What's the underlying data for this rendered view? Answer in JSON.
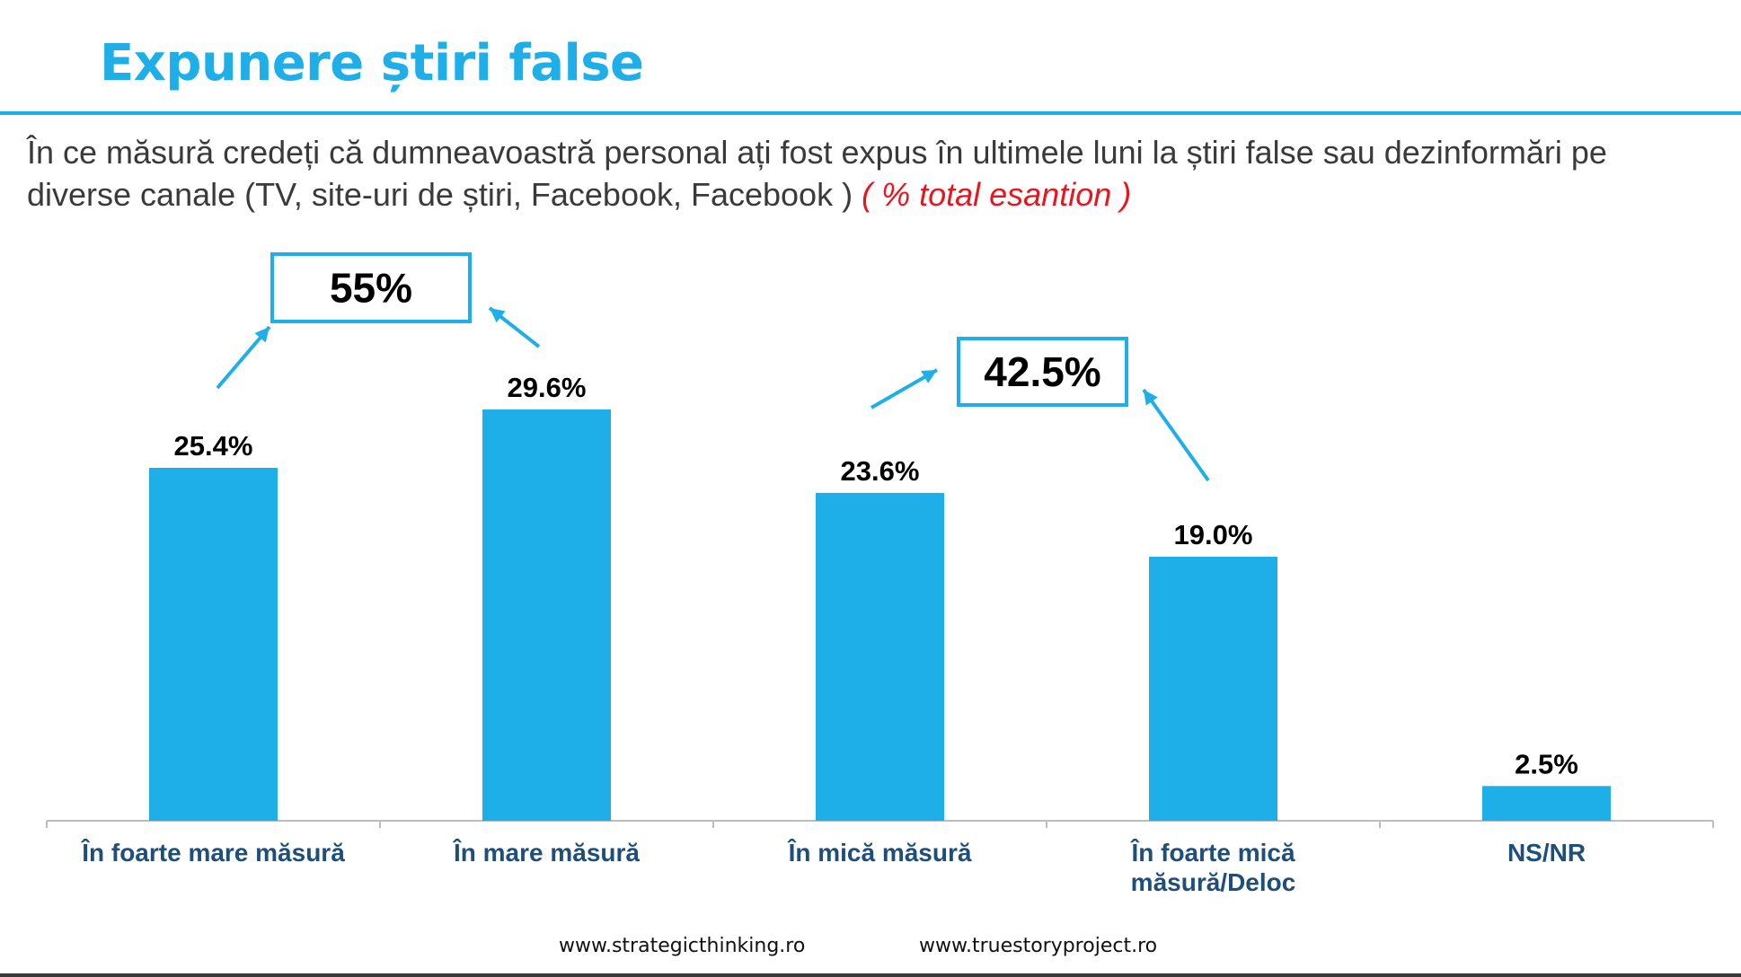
{
  "title": "Expunere știri false",
  "question": {
    "text": "În ce măsură credeți că dumneavoastră personal ați fost expus în ultimele luni la știri false sau dezinformări pe diverse canale (TV, site-uri de știri, Facebook, Facebook )",
    "note": "( % total esantion )"
  },
  "chart_data": {
    "type": "bar",
    "categories": [
      [
        "În foarte mare măsură"
      ],
      [
        "În mare măsură"
      ],
      [
        "În mică măsură"
      ],
      [
        "În foarte mică",
        "măsură/Deloc"
      ],
      [
        "NS/NR"
      ]
    ],
    "values": [
      25.4,
      29.6,
      23.6,
      19.0,
      2.5
    ],
    "data_labels": [
      "25.4%",
      "29.6%",
      "23.6%",
      "19.0%",
      "2.5%"
    ],
    "ylim": [
      0,
      29.6
    ],
    "grid": false,
    "bar_color": "#1eaee8",
    "category_label_color": "#1f4e79",
    "annotations": [
      {
        "text": "55%",
        "groups": [
          0,
          1
        ]
      },
      {
        "text": "42.5%",
        "groups": [
          2,
          3
        ]
      }
    ]
  },
  "footer": {
    "left": "www.strategicthinking.ro",
    "right": "www.truestoryproject.ro"
  },
  "colors": {
    "accent": "#1eaee8",
    "note": "#e8141e"
  }
}
